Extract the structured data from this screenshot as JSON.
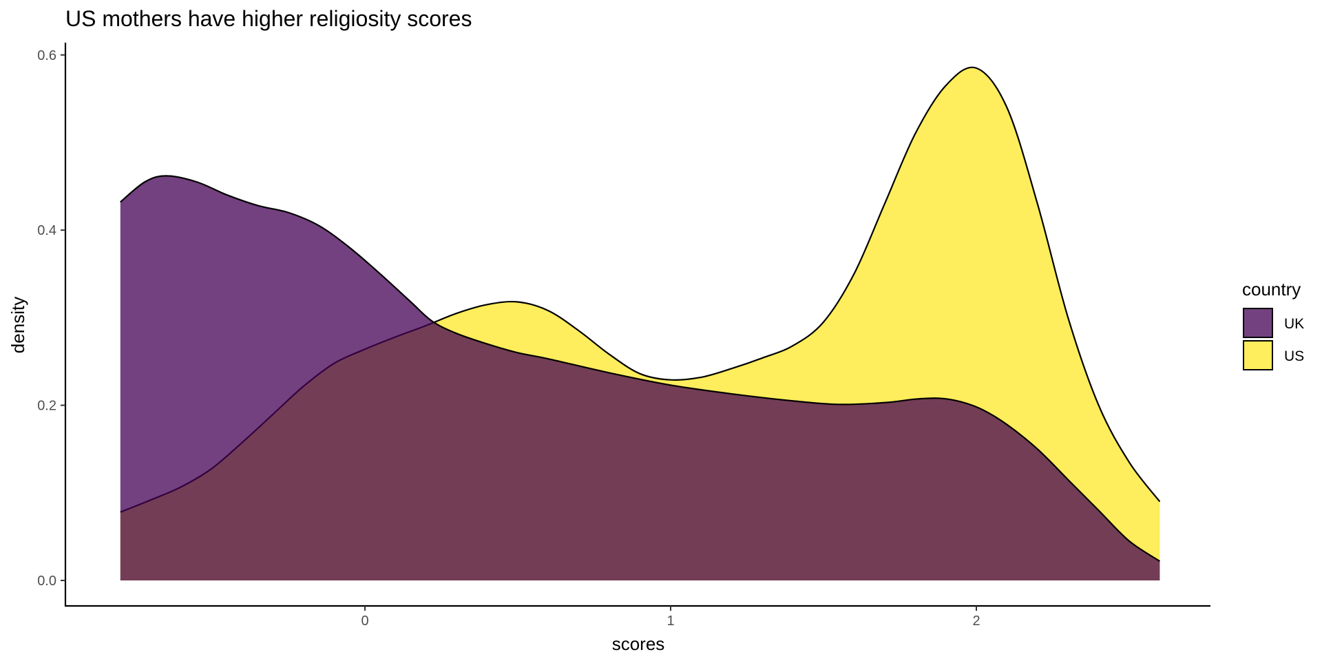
{
  "chart_data": {
    "type": "area",
    "title": "US mothers have higher religiosity scores",
    "xlabel": "scores",
    "ylabel": "density",
    "xlim": [
      -0.98,
      2.76
    ],
    "ylim": [
      -0.04,
      0.62
    ],
    "x_ticks": [
      0,
      1,
      2
    ],
    "x_tick_labels": [
      "0",
      "1",
      "2"
    ],
    "y_ticks": [
      0.0,
      0.2,
      0.4,
      0.6
    ],
    "y_tick_labels": [
      "0.0",
      "0.2",
      "0.4",
      "0.6"
    ],
    "grid": false,
    "legend": {
      "title": "country",
      "position": "right"
    },
    "series": [
      {
        "name": "UK",
        "color": "#440154",
        "opacity": 0.75,
        "x": [
          -0.8,
          -0.72,
          -0.65,
          -0.55,
          -0.45,
          -0.35,
          -0.25,
          -0.15,
          -0.05,
          0.05,
          0.15,
          0.22,
          0.3,
          0.4,
          0.5,
          0.6,
          0.8,
          1.0,
          1.2,
          1.4,
          1.55,
          1.7,
          1.8,
          1.88,
          1.95,
          2.02,
          2.1,
          2.2,
          2.3,
          2.4,
          2.5,
          2.6
        ],
        "y": [
          0.432,
          0.455,
          0.462,
          0.455,
          0.44,
          0.428,
          0.42,
          0.405,
          0.38,
          0.35,
          0.318,
          0.296,
          0.282,
          0.27,
          0.26,
          0.253,
          0.237,
          0.223,
          0.213,
          0.205,
          0.201,
          0.203,
          0.207,
          0.208,
          0.204,
          0.195,
          0.178,
          0.15,
          0.115,
          0.08,
          0.045,
          0.022
        ]
      },
      {
        "name": "US",
        "color": "#fde725",
        "opacity": 0.75,
        "x": [
          -0.8,
          -0.7,
          -0.6,
          -0.5,
          -0.4,
          -0.3,
          -0.2,
          -0.1,
          0.0,
          0.1,
          0.2,
          0.3,
          0.4,
          0.5,
          0.6,
          0.7,
          0.8,
          0.9,
          1.0,
          1.1,
          1.2,
          1.3,
          1.4,
          1.5,
          1.6,
          1.7,
          1.8,
          1.9,
          2.0,
          2.1,
          2.2,
          2.3,
          2.4,
          2.5,
          2.6
        ],
        "y": [
          0.078,
          0.092,
          0.107,
          0.128,
          0.158,
          0.19,
          0.222,
          0.248,
          0.264,
          0.278,
          0.291,
          0.305,
          0.315,
          0.318,
          0.308,
          0.285,
          0.258,
          0.236,
          0.229,
          0.232,
          0.242,
          0.254,
          0.268,
          0.295,
          0.35,
          0.43,
          0.51,
          0.565,
          0.585,
          0.54,
          0.43,
          0.3,
          0.2,
          0.135,
          0.09
        ]
      }
    ]
  }
}
